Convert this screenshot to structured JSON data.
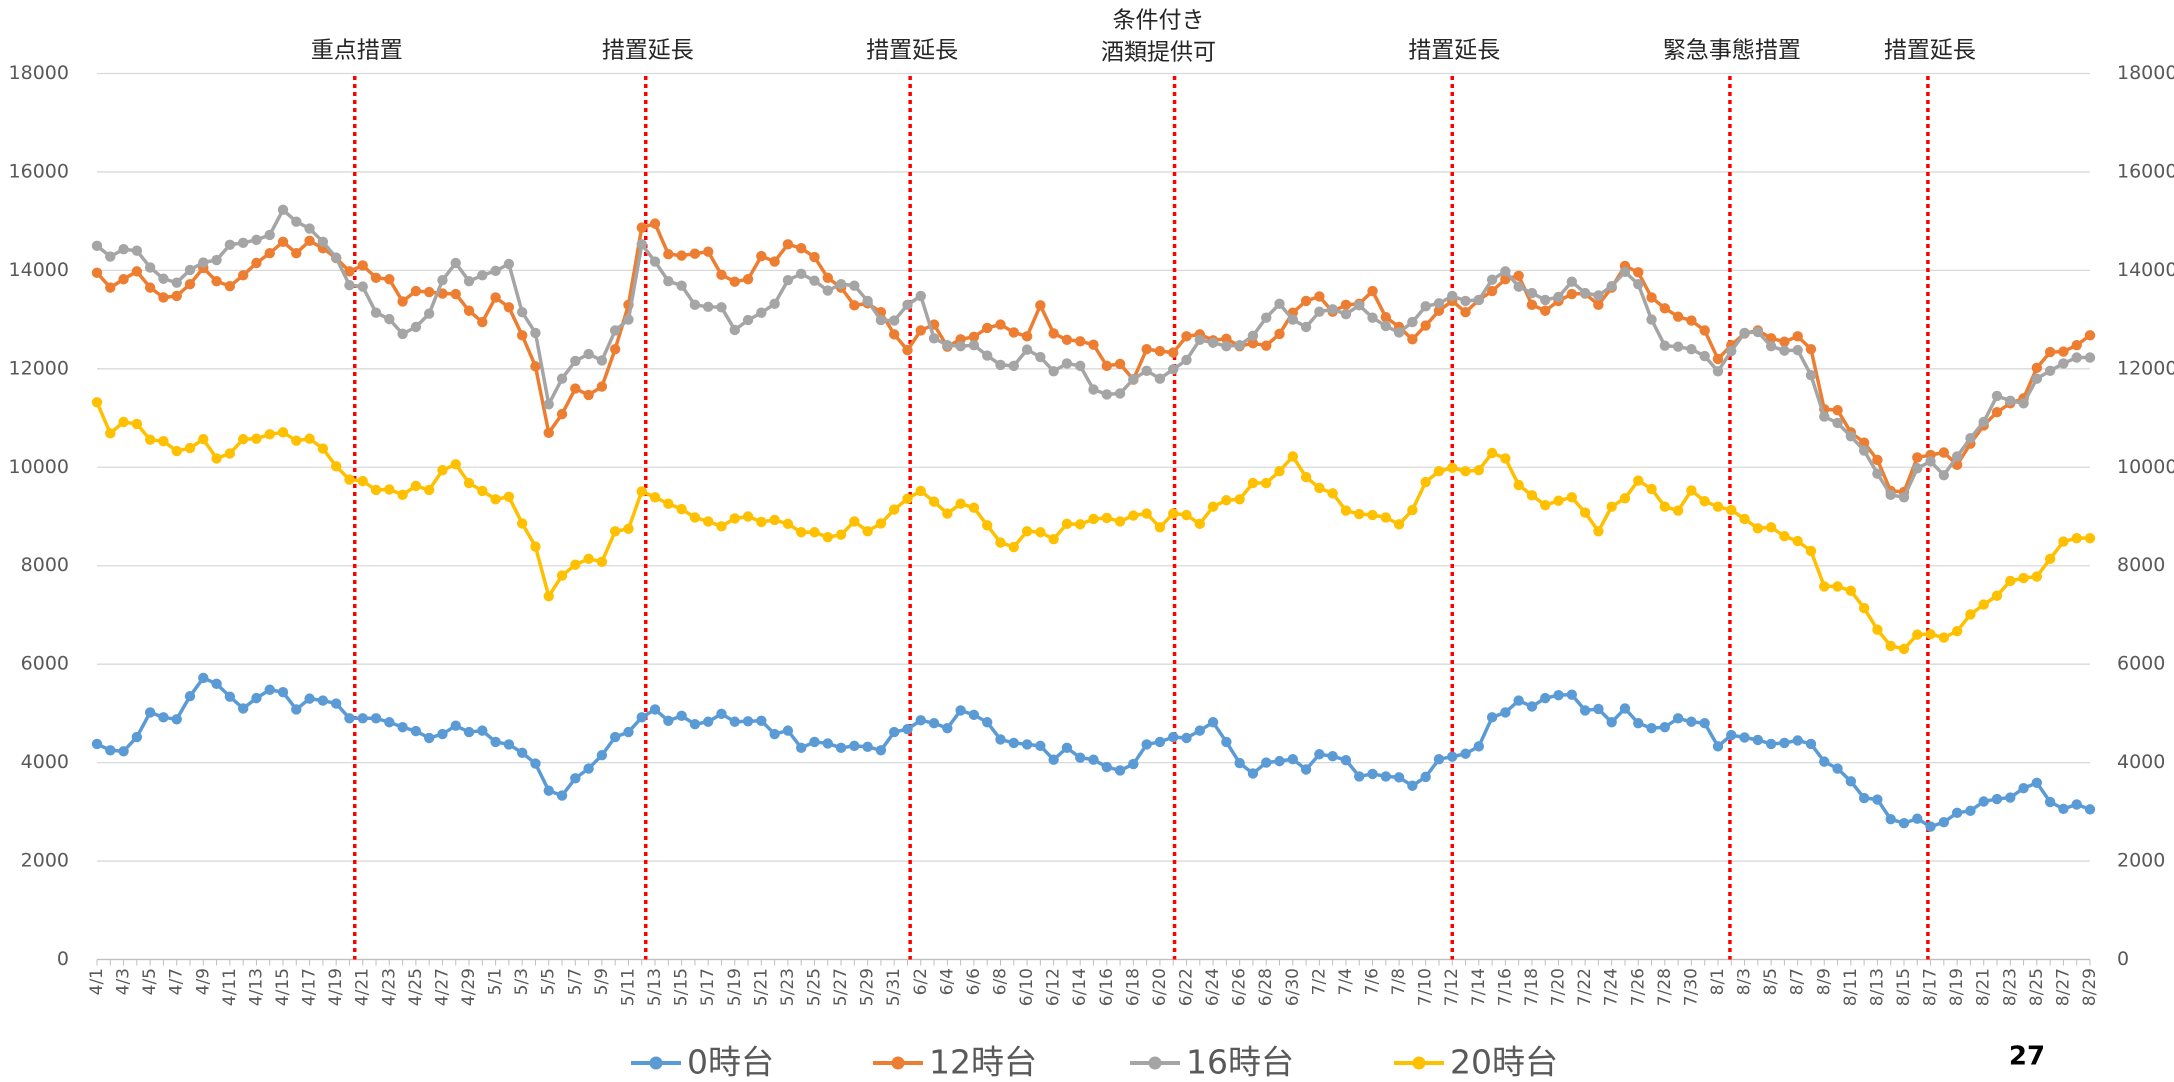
{
  "chart_data": {
    "type": "line",
    "annotations": [
      "重点措置",
      "措置延長",
      "措置延長",
      [
        "条件付き",
        "酒類提供可"
      ],
      "措置延長",
      "緊急事態措置",
      "措置延長"
    ],
    "categories": [
      "4/1",
      null,
      "4/3",
      null,
      "4/5",
      null,
      "4/7",
      null,
      "4/9",
      null,
      "4/11",
      null,
      "4/13",
      null,
      "4/15",
      null,
      "4/17",
      null,
      "4/19",
      null,
      "4/21",
      null,
      "4/23",
      null,
      "4/25",
      null,
      "4/27",
      null,
      "4/29",
      null,
      "5/1",
      null,
      "5/3",
      null,
      "5/5",
      null,
      "5/7",
      null,
      "5/9",
      null,
      "5/11",
      null,
      "5/13",
      null,
      "5/15",
      null,
      "5/17",
      null,
      "5/19",
      null,
      "5/21",
      null,
      "5/23",
      null,
      "5/25",
      null,
      "5/27",
      null,
      "5/29",
      null,
      "5/31",
      null,
      "6/2",
      null,
      "6/4",
      null,
      "6/6",
      null,
      "6/8",
      null,
      "6/10",
      null,
      "6/12",
      null,
      "6/14",
      null,
      "6/16",
      null,
      "6/18",
      null,
      "6/20",
      null,
      "6/22",
      null,
      "6/24",
      null,
      "6/26",
      null,
      "6/28",
      null,
      "6/30",
      null,
      "7/2",
      null,
      "7/4",
      null,
      "7/6",
      null,
      "7/8",
      null,
      "7/10",
      null,
      "7/12",
      null,
      "7/14",
      null,
      "7/16",
      null,
      "7/18",
      null,
      "7/20",
      null,
      "7/22",
      null,
      "7/24",
      null,
      "7/26",
      null,
      "7/28",
      null,
      "7/30",
      null,
      "8/1",
      null,
      "8/3",
      null,
      "8/5",
      null,
      "8/7",
      null,
      "8/9",
      null,
      "8/11",
      null,
      "8/13",
      null,
      "8/15",
      null,
      "8/17",
      null,
      "8/19",
      null,
      "8/21",
      null,
      "8/23",
      null,
      "8/25",
      null,
      "8/27",
      null,
      "8/29"
    ],
    "series": [
      {
        "name": "0時台",
        "color": "#5b9bd5",
        "values": [
          4380,
          4250,
          4230,
          4520,
          5020,
          4920,
          4880,
          5350,
          5720,
          5600,
          5340,
          5100,
          5310,
          5480,
          5430,
          5080,
          5300,
          5260,
          5200,
          4900,
          4900,
          4900,
          4820,
          4720,
          4640,
          4500,
          4580,
          4750,
          4620,
          4650,
          4420,
          4370,
          4200,
          3980,
          3430,
          3330,
          3680,
          3880,
          4150,
          4520,
          4620,
          4920,
          5080,
          4850,
          4950,
          4780,
          4830,
          4990,
          4830,
          4840,
          4850,
          4580,
          4650,
          4300,
          4420,
          4390,
          4300,
          4340,
          4320,
          4250,
          4620,
          4680,
          4860,
          4800,
          4700,
          5060,
          4970,
          4820,
          4470,
          4400,
          4370,
          4340,
          4060,
          4300,
          4100,
          4060,
          3910,
          3840,
          3970,
          4370,
          4420,
          4520,
          4500,
          4650,
          4820,
          4420,
          3990,
          3780,
          4000,
          4030,
          4070,
          3860,
          4170,
          4130,
          4050,
          3720,
          3770,
          3720,
          3700,
          3530,
          3710,
          4070,
          4120,
          4180,
          4330,
          4920,
          5020,
          5260,
          5140,
          5310,
          5370,
          5380,
          5060,
          5090,
          4820,
          5100,
          4800,
          4700,
          4720,
          4900,
          4830,
          4800,
          4330,
          4560,
          4510,
          4460,
          4380,
          4400,
          4450,
          4380,
          4020,
          3880,
          3620,
          3280,
          3250,
          2850,
          2770,
          2860,
          2700,
          2790,
          2980,
          3020,
          3210,
          3260,
          3290,
          3480,
          3590,
          3200,
          3060,
          3150,
          3050
        ]
      },
      {
        "name": "12時台",
        "color": "#ed7d31",
        "values": [
          13950,
          13650,
          13820,
          13980,
          13650,
          13450,
          13480,
          13720,
          14050,
          13780,
          13680,
          13900,
          14150,
          14350,
          14580,
          14350,
          14600,
          14450,
          14250,
          13980,
          14100,
          13850,
          13820,
          13370,
          13580,
          13560,
          13530,
          13520,
          13180,
          12950,
          13450,
          13250,
          12680,
          12050,
          10700,
          11080,
          11600,
          11470,
          11640,
          12400,
          13300,
          14870,
          14950,
          14330,
          14300,
          14340,
          14380,
          13910,
          13770,
          13820,
          14290,
          14180,
          14530,
          14450,
          14270,
          13850,
          13650,
          13290,
          13330,
          13150,
          12700,
          12380,
          12780,
          12900,
          12450,
          12600,
          12650,
          12830,
          12900,
          12740,
          12660,
          13290,
          12720,
          12590,
          12560,
          12490,
          12060,
          12100,
          11780,
          12400,
          12360,
          12330,
          12660,
          12700,
          12580,
          12610,
          12460,
          12520,
          12470,
          12710,
          13140,
          13380,
          13470,
          13160,
          13300,
          13320,
          13580,
          13050,
          12850,
          12600,
          12880,
          13180,
          13380,
          13150,
          13400,
          13580,
          13820,
          13890,
          13300,
          13180,
          13380,
          13520,
          13530,
          13300,
          13650,
          14090,
          13960,
          13450,
          13230,
          13060,
          12980,
          12780,
          12200,
          12480,
          12720,
          12780,
          12620,
          12550,
          12660,
          12400,
          11180,
          11160,
          10710,
          10500,
          10150,
          9520,
          9500,
          10200,
          10250,
          10300,
          10050,
          10480,
          10850,
          11120,
          11300,
          11400,
          12020,
          12340,
          12350,
          12480,
          12680
        ]
      },
      {
        "name": "16時台",
        "color": "#a5a5a5",
        "values": [
          14500,
          14280,
          14430,
          14400,
          14060,
          13830,
          13750,
          14010,
          14160,
          14210,
          14520,
          14560,
          14620,
          14720,
          15230,
          14990,
          14850,
          14580,
          14260,
          13700,
          13670,
          13140,
          13010,
          12710,
          12850,
          13120,
          13800,
          14150,
          13780,
          13900,
          13990,
          14130,
          13150,
          12730,
          11280,
          11800,
          12160,
          12300,
          12170,
          12780,
          13000,
          14530,
          14180,
          13780,
          13690,
          13300,
          13260,
          13250,
          12790,
          12990,
          13140,
          13320,
          13800,
          13930,
          13790,
          13590,
          13720,
          13690,
          13380,
          12990,
          12980,
          13300,
          13480,
          12620,
          12480,
          12460,
          12480,
          12270,
          12080,
          12060,
          12390,
          12240,
          11950,
          12110,
          12060,
          11580,
          11480,
          11500,
          11790,
          11960,
          11800,
          11990,
          12180,
          12590,
          12530,
          12460,
          12480,
          12670,
          13040,
          13320,
          13000,
          12850,
          13160,
          13210,
          13110,
          13290,
          13040,
          12870,
          12740,
          12950,
          13270,
          13330,
          13480,
          13380,
          13400,
          13810,
          13980,
          13670,
          13540,
          13400,
          13460,
          13770,
          13540,
          13490,
          13680,
          13970,
          13720,
          13000,
          12470,
          12450,
          12400,
          12260,
          11950,
          12360,
          12730,
          12750,
          12460,
          12370,
          12380,
          11870,
          11030,
          10900,
          10630,
          10340,
          9870,
          9440,
          9390,
          9980,
          10120,
          9840,
          10220,
          10590,
          10920,
          11450,
          11350,
          11300,
          11800,
          11960,
          12110,
          12230,
          12230
        ]
      },
      {
        "name": "20時台",
        "color": "#ffc000",
        "values": [
          11320,
          10690,
          10920,
          10880,
          10560,
          10530,
          10330,
          10390,
          10570,
          10180,
          10280,
          10570,
          10580,
          10670,
          10710,
          10540,
          10580,
          10380,
          10020,
          9750,
          9720,
          9540,
          9550,
          9440,
          9620,
          9540,
          9940,
          10060,
          9680,
          9520,
          9350,
          9400,
          8860,
          8390,
          7380,
          7800,
          8020,
          8140,
          8080,
          8700,
          8750,
          9510,
          9390,
          9260,
          9150,
          8980,
          8900,
          8800,
          8960,
          9000,
          8890,
          8930,
          8850,
          8680,
          8680,
          8580,
          8630,
          8900,
          8700,
          8860,
          9140,
          9360,
          9520,
          9300,
          9060,
          9260,
          9180,
          8820,
          8470,
          8380,
          8700,
          8680,
          8540,
          8850,
          8840,
          8950,
          8970,
          8900,
          9020,
          9060,
          8780,
          9060,
          9030,
          8850,
          9200,
          9330,
          9350,
          9680,
          9680,
          9920,
          10220,
          9800,
          9580,
          9470,
          9120,
          9050,
          9030,
          8980,
          8840,
          9130,
          9700,
          9920,
          9990,
          9920,
          9940,
          10290,
          10180,
          9640,
          9430,
          9230,
          9320,
          9390,
          9080,
          8700,
          9200,
          9370,
          9730,
          9560,
          9200,
          9120,
          9530,
          9310,
          9200,
          9130,
          8950,
          8760,
          8780,
          8600,
          8500,
          8300,
          7580,
          7580,
          7490,
          7140,
          6700,
          6370,
          6310,
          6600,
          6610,
          6540,
          6670,
          7010,
          7210,
          7390,
          7690,
          7750,
          7780,
          8140,
          8490,
          8560,
          8560
        ]
      }
    ],
    "ylim": [
      0,
      18000
    ],
    "yticks": [
      0,
      2000,
      4000,
      6000,
      8000,
      10000,
      12000,
      14000,
      16000,
      18000
    ],
    "y2lim": [
      0,
      18000
    ],
    "y2ticks": [
      0,
      2000,
      4000,
      6000,
      8000,
      10000,
      12000,
      14000,
      16000,
      18000
    ],
    "grid": true,
    "legend": "bottom"
  },
  "page_number": "27"
}
